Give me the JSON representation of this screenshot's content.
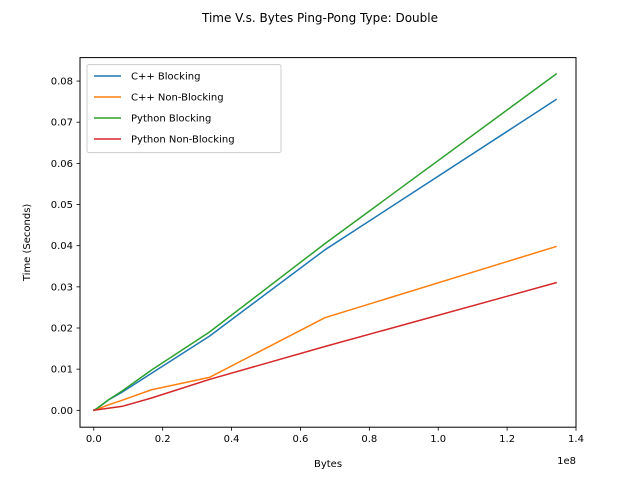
{
  "chart_data": {
    "type": "line",
    "title": "Time V.s. Bytes Ping-Pong Type: Double",
    "xlabel": "Bytes",
    "ylabel": "Time (Seconds)",
    "x_offset_label": "1e8",
    "x_scale": 100000000,
    "xlim": [
      -4000000,
      140000000
    ],
    "ylim": [
      -0.0041,
      0.0857
    ],
    "x_ticks": [
      0,
      0.2,
      0.4,
      0.6,
      0.8,
      1.0,
      1.2,
      1.4
    ],
    "x_tick_labels": [
      "0.0",
      "0.2",
      "0.4",
      "0.6",
      "0.8",
      "1.0",
      "1.2",
      "1.4"
    ],
    "y_ticks": [
      0,
      0.01,
      0.02,
      0.03,
      0.04,
      0.05,
      0.06,
      0.07,
      0.08
    ],
    "y_tick_labels": [
      "0.00",
      "0.01",
      "0.02",
      "0.03",
      "0.04",
      "0.05",
      "0.06",
      "0.07",
      "0.08"
    ],
    "grid": false,
    "legend_position": "top-left",
    "x": [
      8,
      80,
      800,
      8000,
      80000,
      800000,
      4194304,
      8388608,
      16777216,
      33554432,
      67108864,
      134217728
    ],
    "series": [
      {
        "name": "C++ Blocking",
        "color": "#1f77b4",
        "values": [
          1e-05,
          1e-05,
          2e-05,
          5e-05,
          6e-05,
          0.0003,
          0.0025,
          0.0045,
          0.009,
          0.018,
          0.039,
          0.0755
        ]
      },
      {
        "name": "C++ Non-Blocking",
        "color": "#ff7f0e",
        "values": [
          1e-05,
          1e-05,
          2e-05,
          4e-05,
          5e-05,
          0.0002,
          0.0013,
          0.0025,
          0.005,
          0.008,
          0.0225,
          0.0398
        ]
      },
      {
        "name": "Python Blocking",
        "color": "#2ca02c",
        "values": [
          1e-05,
          2e-05,
          3e-05,
          6e-05,
          8e-05,
          0.0004,
          0.0025,
          0.0048,
          0.0098,
          0.019,
          0.0405,
          0.0817
        ]
      },
      {
        "name": "Python Non-Blocking",
        "color": "#d62728",
        "values": [
          1e-05,
          1e-05,
          1e-05,
          2e-05,
          4e-05,
          0.0001,
          0.0005,
          0.001,
          0.003,
          0.0075,
          0.0155,
          0.031
        ]
      }
    ]
  }
}
